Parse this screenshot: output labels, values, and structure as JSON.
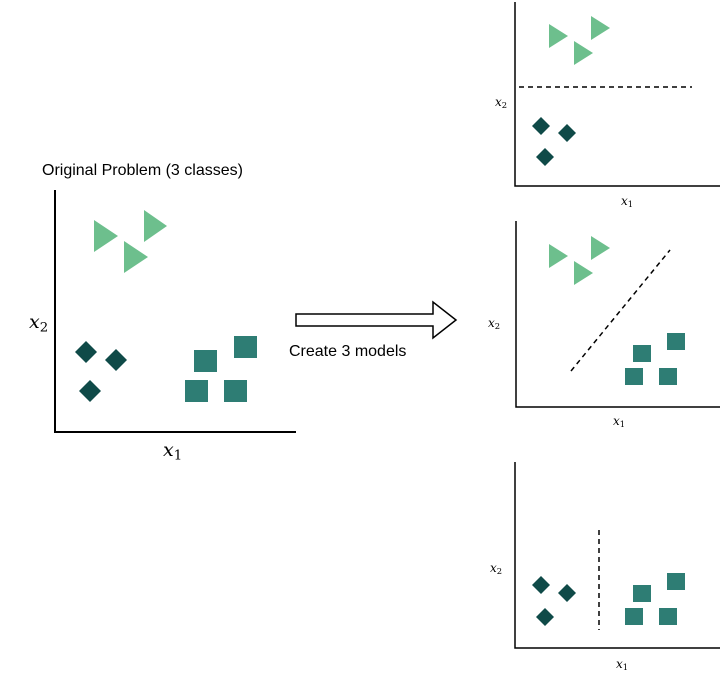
{
  "original": {
    "title": "Original Problem (3 classes)",
    "x_label": {
      "var": "x",
      "sub": "1"
    },
    "y_label": {
      "var": "x",
      "sub": "2"
    }
  },
  "arrow": {
    "label": "Create 3 models"
  },
  "models": [
    {
      "x_label": {
        "var": "x",
        "sub": "1"
      },
      "y_label": {
        "var": "x",
        "sub": "2"
      }
    },
    {
      "x_label": {
        "var": "x",
        "sub": "1"
      },
      "y_label": {
        "var": "x",
        "sub": "2"
      }
    },
    {
      "x_label": {
        "var": "x",
        "sub": "1"
      },
      "y_label": {
        "var": "x",
        "sub": "2"
      }
    }
  ],
  "colors": {
    "triangle_class": "#6dbf8d",
    "diamond_class": "#0f4a48",
    "square_class": "#2e7d74",
    "axis": "#000000",
    "boundary": "#000000"
  }
}
